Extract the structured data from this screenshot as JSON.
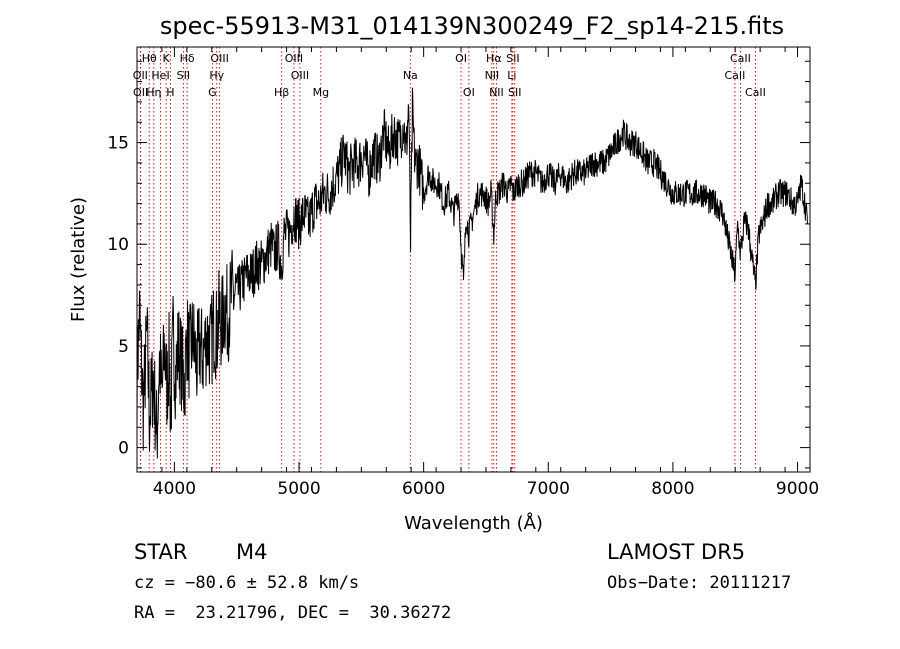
{
  "chart_data": {
    "type": "line",
    "title": "spec-55913-M31_014139N300249_F2_sp14-215.fits",
    "xlabel": "Wavelength (Å)",
    "ylabel": "Flux (relative)",
    "xlim": [
      3700,
      9100
    ],
    "ylim": [
      -1.2,
      19.7
    ],
    "xticks": [
      4000,
      5000,
      6000,
      7000,
      8000,
      9000
    ],
    "yticks": [
      0,
      5,
      10,
      15
    ],
    "grid": false,
    "series": [
      {
        "style": "noisy-line",
        "x": [
          3700,
          3720,
          3750,
          3780,
          3800,
          3830,
          3860,
          3880,
          3900,
          3920,
          3940,
          3960,
          3970,
          3990,
          4010,
          4030,
          4060,
          4080,
          4100,
          4120,
          4150,
          4180,
          4200,
          4230,
          4260,
          4290,
          4320,
          4340,
          4360,
          4380,
          4400,
          4430,
          4460,
          4500,
          4540,
          4580,
          4620,
          4660,
          4700,
          4740,
          4780,
          4800,
          4830,
          4860,
          4880,
          4920,
          4960,
          5000,
          5040,
          5080,
          5120,
          5160,
          5200,
          5240,
          5280,
          5320,
          5360,
          5400,
          5440,
          5480,
          5520,
          5560,
          5600,
          5640,
          5680,
          5720,
          5760,
          5800,
          5840,
          5860,
          5880,
          5895,
          5910,
          5930,
          5960,
          6000,
          6040,
          6080,
          6120,
          6160,
          6200,
          6240,
          6280,
          6300,
          6320,
          6340,
          6363,
          6400,
          6440,
          6480,
          6520,
          6540,
          6563,
          6580,
          6600,
          6640,
          6680,
          6700,
          6720,
          6760,
          6800,
          6850,
          6900,
          6950,
          7000,
          7050,
          7100,
          7150,
          7200,
          7250,
          7300,
          7350,
          7400,
          7450,
          7500,
          7550,
          7600,
          7650,
          7700,
          7750,
          7800,
          7850,
          7900,
          7950,
          8000,
          8050,
          8100,
          8150,
          8200,
          8250,
          8300,
          8350,
          8400,
          8450,
          8498,
          8520,
          8542,
          8570,
          8600,
          8630,
          8662,
          8690,
          8720,
          8760,
          8800,
          8840,
          8880,
          8920,
          8960,
          9000,
          9030,
          9060,
          9080
        ],
        "y": [
          3.5,
          6.5,
          2.0,
          5.5,
          1.5,
          3.5,
          0.5,
          4.5,
          2.5,
          5.0,
          3.0,
          4.5,
          1.5,
          5.5,
          3.5,
          5.0,
          4.0,
          3.0,
          5.5,
          4.5,
          5.5,
          4.0,
          5.0,
          4.5,
          5.5,
          5.0,
          6.0,
          5.5,
          6.5,
          6.0,
          7.0,
          6.5,
          7.5,
          7.5,
          8.0,
          8.5,
          8.5,
          9.0,
          9.0,
          9.5,
          10.0,
          9.5,
          10.0,
          9.0,
          10.5,
          10.5,
          11.5,
          11.0,
          11.5,
          11.0,
          12.0,
          12.0,
          12.5,
          12.5,
          13.0,
          13.5,
          14.5,
          13.5,
          14.0,
          14.0,
          14.5,
          13.5,
          14.5,
          14.0,
          15.5,
          14.5,
          15.5,
          15.0,
          16.0,
          14.5,
          17.0,
          10.0,
          16.5,
          14.0,
          14.0,
          12.5,
          13.5,
          13.0,
          13.0,
          12.0,
          12.5,
          11.5,
          12.5,
          10.0,
          8.0,
          11.5,
          10.5,
          11.5,
          12.5,
          12.5,
          12.0,
          12.5,
          10.5,
          12.5,
          12.5,
          13.0,
          12.5,
          13.0,
          12.5,
          13.0,
          13.0,
          13.5,
          13.5,
          13.0,
          13.5,
          13.0,
          13.5,
          13.0,
          13.5,
          13.5,
          13.5,
          14.0,
          14.0,
          14.0,
          14.5,
          15.0,
          15.5,
          15.0,
          15.0,
          14.5,
          14.0,
          14.0,
          13.5,
          13.0,
          12.5,
          12.5,
          12.5,
          12.5,
          12.5,
          12.5,
          12.0,
          12.0,
          11.5,
          10.0,
          8.5,
          11.0,
          9.5,
          11.0,
          11.0,
          9.5,
          8.0,
          10.5,
          11.0,
          12.0,
          12.0,
          12.5,
          12.5,
          12.5,
          12.0,
          12.0,
          13.0,
          12.0,
          11.0
        ]
      }
    ],
    "lines": [
      {
        "label": "Hθ",
        "wave": 3798,
        "row": 1
      },
      {
        "label": "K",
        "wave": 3934,
        "row": 1
      },
      {
        "label": "Hδ",
        "wave": 4102,
        "row": 1
      },
      {
        "label": "OIII",
        "wave": 4363,
        "row": 1
      },
      {
        "label": "OIII",
        "wave": 4959,
        "row": 1
      },
      {
        "label": "OI",
        "wave": 6300,
        "row": 1
      },
      {
        "label": "Hα",
        "wave": 6563,
        "row": 1
      },
      {
        "label": "SII",
        "wave": 6716,
        "row": 1
      },
      {
        "label": "CaII",
        "wave": 8542,
        "row": 1
      },
      {
        "label": "OII",
        "wave": 3727,
        "row": 2
      },
      {
        "label": "HeI",
        "wave": 3889,
        "row": 2
      },
      {
        "label": "SII",
        "wave": 4072,
        "row": 2
      },
      {
        "label": "Hγ",
        "wave": 4340,
        "row": 2
      },
      {
        "label": "OIII",
        "wave": 5007,
        "row": 2
      },
      {
        "label": "Na",
        "wave": 5893,
        "row": 2
      },
      {
        "label": "NII",
        "wave": 6548,
        "row": 2
      },
      {
        "label": "Li",
        "wave": 6708,
        "row": 2
      },
      {
        "label": "CaII",
        "wave": 8498,
        "row": 2
      },
      {
        "label": "OII",
        "wave": 3729,
        "row": 3
      },
      {
        "label": "Hη",
        "wave": 3835,
        "row": 3
      },
      {
        "label": "H",
        "wave": 3968,
        "row": 3
      },
      {
        "label": "G",
        "wave": 4305,
        "row": 3
      },
      {
        "label": "Hβ",
        "wave": 4861,
        "row": 3
      },
      {
        "label": "Mg",
        "wave": 5175,
        "row": 3
      },
      {
        "label": "OI",
        "wave": 6363,
        "row": 3
      },
      {
        "label": "NII",
        "wave": 6584,
        "row": 3
      },
      {
        "label": "SII",
        "wave": 6731,
        "row": 3
      },
      {
        "label": "CaII",
        "wave": 8662,
        "row": 3
      }
    ]
  },
  "info": {
    "class": "STAR",
    "subclass": "M4",
    "survey": "LAMOST DR5",
    "cz": "cz = −80.6 ± 52.8 km/s",
    "obs_date": "Obs−Date: 20111217",
    "coords": "RA =  23.21796, DEC =  30.36272"
  }
}
